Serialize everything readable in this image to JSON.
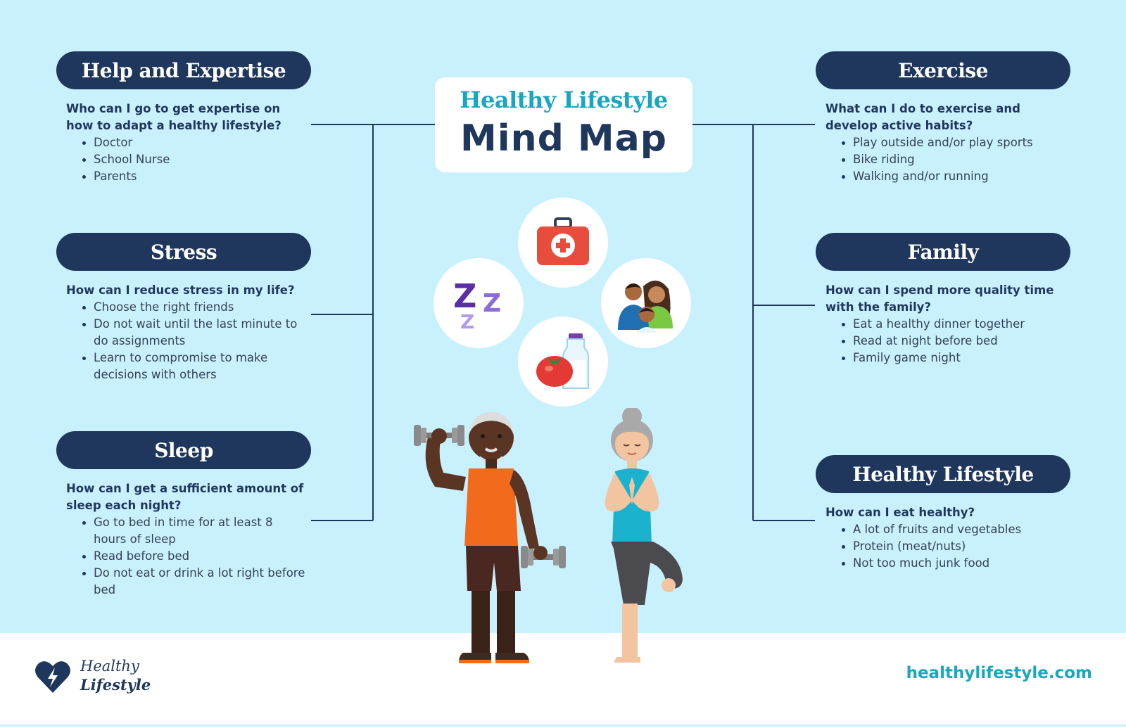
{
  "title": {
    "subtitle": "Healthy Lifestyle",
    "main": "Mind Map"
  },
  "branches": {
    "help": {
      "heading": "Help and Expertise",
      "question": "Who can I go to get expertise on how to adapt a healthy lifestyle?",
      "items": [
        "Doctor",
        "School Nurse",
        "Parents"
      ]
    },
    "stress": {
      "heading": "Stress",
      "question": "How can I reduce stress in my life?",
      "items": [
        "Choose the right friends",
        "Do not wait until the last minute to do assignments",
        "Learn to compromise to make decisions with others"
      ]
    },
    "sleep": {
      "heading": "Sleep",
      "question": "How can I get a sufficient amount of sleep each night?",
      "items": [
        "Go to bed in time for at least 8 hours of sleep",
        "Read before bed",
        "Do not eat or drink a lot right before bed"
      ]
    },
    "exercise": {
      "heading": "Exercise",
      "question": "What can I do to exercise and develop active habits?",
      "items": [
        "Play outside and/or play sports",
        "Bike riding",
        "Walking and/or running"
      ]
    },
    "family": {
      "heading": "Family",
      "question": "How can I spend more quality time with the family?",
      "items": [
        "Eat a healthy dinner together",
        "Read at night before bed",
        "Family game night"
      ]
    },
    "healthy": {
      "heading": "Healthy Lifestyle",
      "question": "How can I eat healthy?",
      "items": [
        "A lot of fruits and vegetables",
        "Protein (meat/nuts)",
        "Not too much junk food"
      ]
    }
  },
  "icons": [
    "first-aid-kit-icon",
    "sleep-zzz-icon",
    "family-icon",
    "healthy-food-icon",
    "elderly-couple-exercising-illustration"
  ],
  "footer": {
    "logo_line1": "Healthy",
    "logo_line2": "Lifestyle",
    "website": "healthylifestyle.com"
  },
  "colors": {
    "background": "#c9f1fd",
    "navy": "#1f375d",
    "teal": "#1aa6c0",
    "white": "#ffffff"
  }
}
